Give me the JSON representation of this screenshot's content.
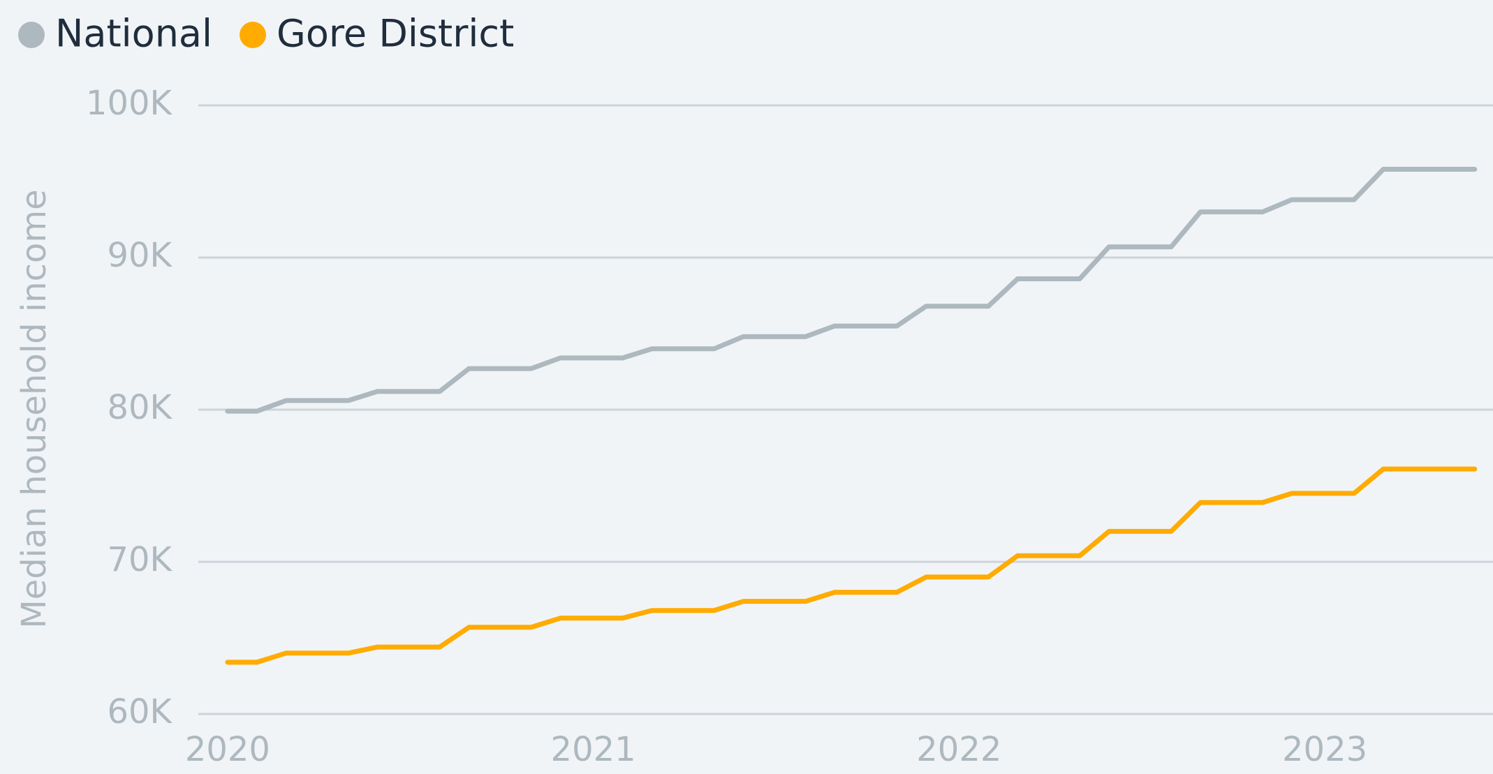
{
  "chart_data": {
    "type": "line",
    "ylabel": "Median household income",
    "x": [
      2020.0,
      2020.08,
      2020.16,
      2020.33,
      2020.41,
      2020.58,
      2020.66,
      2020.83,
      2020.91,
      2021.08,
      2021.16,
      2021.33,
      2021.41,
      2021.58,
      2021.66,
      2021.83,
      2021.91,
      2022.08,
      2022.16,
      2022.33,
      2022.41,
      2022.58,
      2022.66,
      2022.83,
      2022.91,
      2023.08,
      2023.16,
      2023.41
    ],
    "series": [
      {
        "name": "National",
        "color": "#adb8bf",
        "values": [
          79900,
          79900,
          80600,
          80600,
          81200,
          81200,
          82700,
          82700,
          83400,
          83400,
          84000,
          84000,
          84800,
          84800,
          85500,
          85500,
          86800,
          86800,
          88600,
          88600,
          90700,
          90700,
          93000,
          93000,
          93800,
          93800,
          95800,
          95800
        ]
      },
      {
        "name": "Gore District",
        "color": "#ffab00",
        "values": [
          63400,
          63400,
          64000,
          64000,
          64400,
          64400,
          65700,
          65700,
          66300,
          66300,
          66800,
          66800,
          67400,
          67400,
          68000,
          68000,
          69000,
          69000,
          70400,
          70400,
          72000,
          72000,
          73900,
          73900,
          74500,
          74500,
          76100,
          76100
        ]
      }
    ],
    "xlim": [
      2019.92,
      2023.46
    ],
    "xticks": [
      2020,
      2021,
      2022,
      2023
    ],
    "ylim": [
      60000,
      100000
    ],
    "yticks": [
      {
        "value": 60000,
        "label": "60K"
      },
      {
        "value": 70000,
        "label": "70K"
      },
      {
        "value": 80000,
        "label": "80K"
      },
      {
        "value": 90000,
        "label": "90K"
      },
      {
        "value": 100000,
        "label": "100K"
      }
    ],
    "grid": true
  }
}
